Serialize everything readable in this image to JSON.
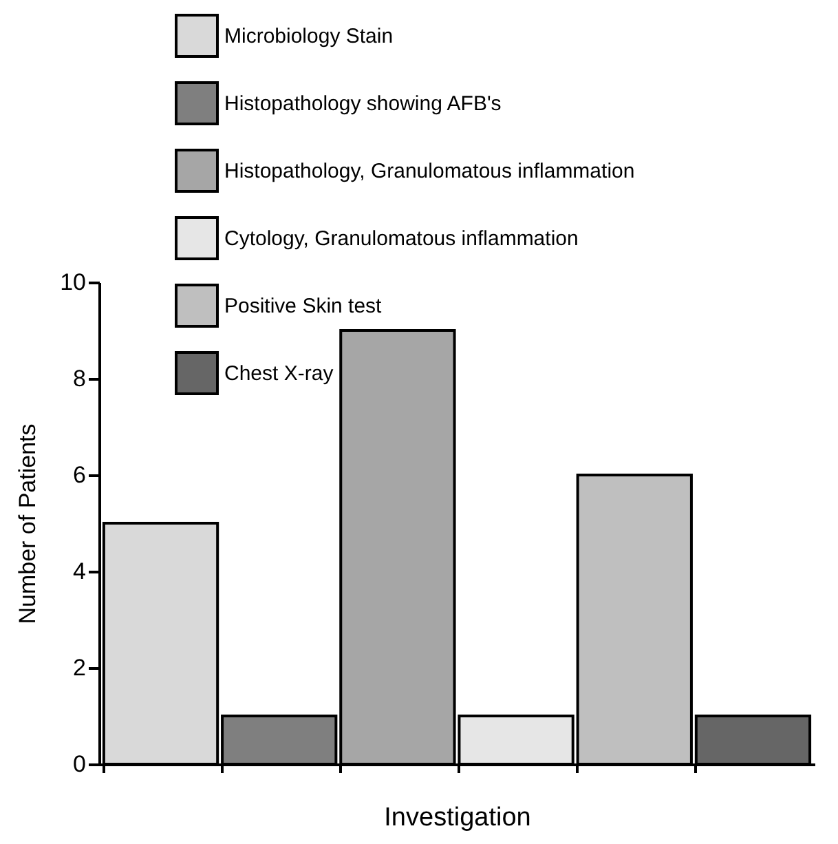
{
  "chart_data": {
    "type": "bar",
    "xlabel": "Investigation",
    "ylabel": "Number of Patients",
    "categories": [
      null,
      null,
      null,
      null,
      null,
      null
    ],
    "series": [
      {
        "name": "Microbiology Stain",
        "color": "#d9d9d9",
        "values": [
          5,
          null,
          null,
          null,
          null,
          null
        ]
      },
      {
        "name": "Histopathology showing AFB's",
        "color": "#7f7f7f",
        "values": [
          null,
          1,
          null,
          null,
          null,
          null
        ]
      },
      {
        "name": "Histopathology, Granulomatous inflammation",
        "color": "#a6a6a6",
        "values": [
          null,
          null,
          9,
          null,
          null,
          null
        ]
      },
      {
        "name": "Cytology, Granulomatous inflammation",
        "color": "#e6e6e6",
        "values": [
          null,
          null,
          null,
          1,
          null,
          null
        ]
      },
      {
        "name": "Positive Skin test",
        "color": "#bfbfbf",
        "values": [
          null,
          null,
          null,
          null,
          6,
          null
        ]
      },
      {
        "name": "Chest X-ray",
        "color": "#666666",
        "values": [
          null,
          null,
          null,
          null,
          null,
          1
        ]
      }
    ],
    "ylim": [
      0,
      10
    ],
    "yticks": [
      0,
      2,
      4,
      6,
      8,
      10
    ],
    "legend": "top left",
    "tick_labels": "y",
    "grid": false
  }
}
